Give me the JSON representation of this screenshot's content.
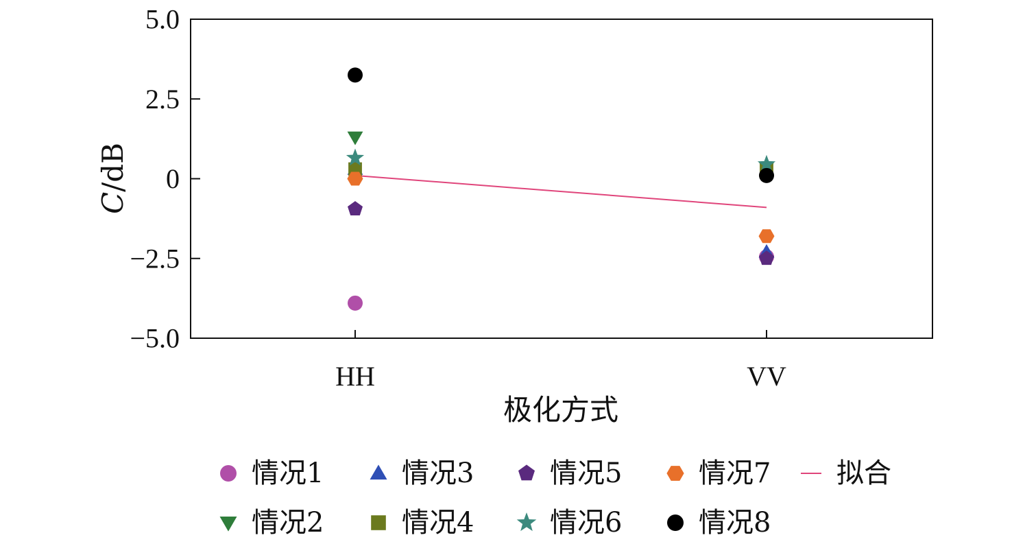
{
  "chart_data": {
    "type": "scatter",
    "title": "",
    "xlabel": "极化方式",
    "ylabel_italic": "C",
    "ylabel_unit": "/dB",
    "categories": [
      "HH",
      "VV"
    ],
    "ylim": [
      -5.0,
      5.0
    ],
    "yticks": [
      5.0,
      2.5,
      0,
      -2.5,
      -5.0
    ],
    "ytick_labels": [
      "5.0",
      "2.5",
      "0",
      "−2.5",
      "−5.0"
    ],
    "series": [
      {
        "name": "情况1",
        "marker": "circle",
        "color": "#b04fa8",
        "values": [
          -3.9,
          -2.45
        ]
      },
      {
        "name": "情况2",
        "marker": "triangle-down",
        "color": "#2e7d3a",
        "values": [
          1.3,
          0.35
        ]
      },
      {
        "name": "情况3",
        "marker": "triangle-up",
        "color": "#2f4fb5",
        "values": [
          0.3,
          -2.3
        ]
      },
      {
        "name": "情况4",
        "marker": "square",
        "color": "#6b7a1e",
        "values": [
          0.3,
          0.3
        ]
      },
      {
        "name": "情况5",
        "marker": "pentagon",
        "color": "#5a2a7e",
        "values": [
          -0.95,
          -2.5
        ]
      },
      {
        "name": "情况6",
        "marker": "star",
        "color": "#3c8a7e",
        "values": [
          0.65,
          0.45
        ]
      },
      {
        "name": "情况7",
        "marker": "hexagon",
        "color": "#e8702a",
        "values": [
          0.0,
          -1.8
        ]
      },
      {
        "name": "情况8",
        "marker": "circle",
        "color": "#000000",
        "values": [
          3.25,
          0.1
        ]
      }
    ],
    "fit": {
      "name": "拟合",
      "color": "#e0457b",
      "values": [
        0.1,
        -0.9
      ]
    },
    "legend_placement": "bottom",
    "grid": false
  }
}
